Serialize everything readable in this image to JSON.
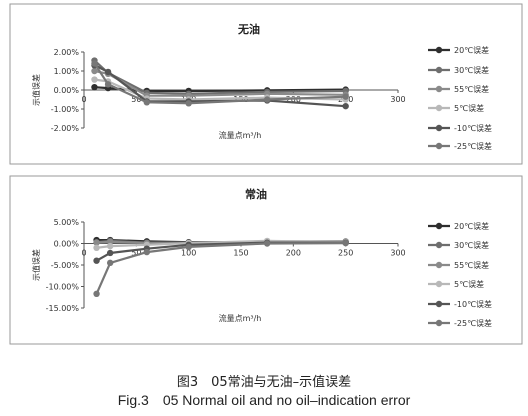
{
  "figure": {
    "caption_cn": "图3　05常油与无油–示值误差",
    "caption_en": "Fig.3　05 Normal oil and no oil–indication error"
  },
  "chart_data": [
    {
      "type": "line",
      "title": "无油",
      "xlabel": "流量点m³/h",
      "ylabel": "示值误差",
      "xlim": [
        0,
        300
      ],
      "ylim": [
        -2,
        2
      ],
      "xticks": [
        "0",
        "50",
        "100",
        "150",
        "200",
        "250",
        "300"
      ],
      "yticks": [
        "2.00%",
        "1.00%",
        "0.00%",
        "-1.00%",
        "-2.00%"
      ],
      "grid": false,
      "legend_position": "right",
      "series": [
        {
          "name": "20℃误差",
          "color": "#2e2e2e",
          "x": [
            10,
            23,
            60,
            100,
            175,
            250
          ],
          "y": [
            0.15,
            0.1,
            -0.05,
            -0.05,
            -0.02,
            0.02
          ]
        },
        {
          "name": "30℃误差",
          "color": "#6e6e6e",
          "x": [
            10,
            23,
            60,
            100,
            175,
            250
          ],
          "y": [
            1.55,
            0.9,
            -0.15,
            -0.2,
            -0.1,
            -0.05
          ]
        },
        {
          "name": "55℃误差",
          "color": "#8a8a8a",
          "x": [
            10,
            23,
            60,
            100,
            175,
            250
          ],
          "y": [
            1.0,
            0.85,
            -0.3,
            -0.3,
            -0.2,
            -0.25
          ]
        },
        {
          "name": "5℃误差",
          "color": "#b8b8b8",
          "x": [
            10,
            23,
            60,
            100,
            175,
            250
          ],
          "y": [
            0.55,
            0.45,
            -0.45,
            -0.5,
            -0.4,
            -0.5
          ]
        },
        {
          "name": "-10℃误差",
          "color": "#555555",
          "x": [
            10,
            23,
            60,
            100,
            175,
            250
          ],
          "y": [
            1.3,
            0.95,
            -0.6,
            -0.6,
            -0.55,
            -0.85
          ]
        },
        {
          "name": "-25℃误差",
          "color": "#777777",
          "x": [
            10,
            23,
            60,
            100,
            175,
            250
          ],
          "y": [
            1.4,
            0.3,
            -0.65,
            -0.7,
            -0.5,
            -0.35
          ]
        }
      ]
    },
    {
      "type": "line",
      "title": "常油",
      "xlabel": "流量点m³/h",
      "ylabel": "示值误差",
      "xlim": [
        0,
        300
      ],
      "ylim": [
        -15,
        5
      ],
      "xticks": [
        "0",
        "50",
        "100",
        "150",
        "200",
        "250",
        "300"
      ],
      "yticks": [
        "5.00%",
        "0.00%",
        "-5.00%",
        "-10.00%",
        "-15.00%"
      ],
      "grid": false,
      "legend_position": "right",
      "series": [
        {
          "name": "20℃误差",
          "color": "#2e2e2e",
          "x": [
            12,
            25,
            60,
            100,
            175,
            250
          ],
          "y": [
            0.8,
            0.8,
            0.5,
            0.3,
            0.3,
            0.4
          ]
        },
        {
          "name": "30℃误差",
          "color": "#6e6e6e",
          "x": [
            12,
            25,
            60,
            100,
            175,
            250
          ],
          "y": [
            0.3,
            0.6,
            0.2,
            0.2,
            0.4,
            0.3
          ]
        },
        {
          "name": "55℃误差",
          "color": "#8a8a8a",
          "x": [
            12,
            25,
            60,
            100,
            175,
            250
          ],
          "y": [
            0.2,
            0.4,
            0.1,
            0.0,
            0.5,
            0.5
          ]
        },
        {
          "name": "5℃误差",
          "color": "#b8b8b8",
          "x": [
            12,
            25,
            60,
            100,
            175,
            250
          ],
          "y": [
            -1.0,
            -0.6,
            -0.3,
            0.1,
            0.6,
            0.3
          ]
        },
        {
          "name": "-10℃误差",
          "color": "#555555",
          "x": [
            12,
            25,
            60,
            100,
            175,
            250
          ],
          "y": [
            -4.0,
            -2.2,
            -1.2,
            -0.3,
            0.2,
            0.2
          ]
        },
        {
          "name": "-25℃误差",
          "color": "#777777",
          "x": [
            12,
            25,
            60,
            100,
            175,
            250
          ],
          "y": [
            -11.7,
            -4.5,
            -2.0,
            -0.8,
            0.0,
            0.1
          ]
        }
      ]
    }
  ]
}
